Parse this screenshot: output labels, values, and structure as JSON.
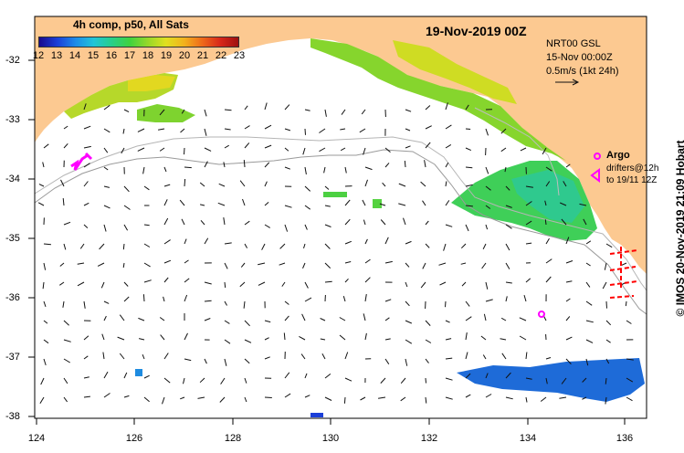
{
  "colorbar": {
    "title": "4h comp, p50, All Sats",
    "ticks": [
      "12",
      "13",
      "14",
      "15",
      "16",
      "17",
      "18",
      "19",
      "20",
      "21",
      "22",
      "23"
    ],
    "colors": [
      "#1a0a8c",
      "#1b3fd8",
      "#1d8be8",
      "#21c4d8",
      "#27cf8a",
      "#3fd23f",
      "#96d829",
      "#e0e020",
      "#f2b21d",
      "#ee6a1a",
      "#d8281a",
      "#9e1010"
    ]
  },
  "map": {
    "title": "19-Nov-2019 00Z",
    "nrt_label": "NRT00 GSL",
    "date_label": "15-Nov 00:00Z",
    "scale_label": "0.5m/s (1kt 24h)",
    "argo_label": "Argo",
    "drifter_label": "drifters@12h",
    "drifter_label_2": "to 19/11 12Z",
    "credit": "© IMOS 20-Nov-2019 21:09 Hobart",
    "land_color": "#fcc991",
    "ocean_color": "#ffffff",
    "argo_color": "#ff00ff",
    "drifter_color": "#ff0000",
    "x_ticks": [
      "124",
      "126",
      "128",
      "130",
      "132",
      "134",
      "136"
    ],
    "y_ticks": [
      "-32",
      "-33",
      "-34",
      "-35",
      "-36",
      "-37",
      "-38"
    ]
  }
}
